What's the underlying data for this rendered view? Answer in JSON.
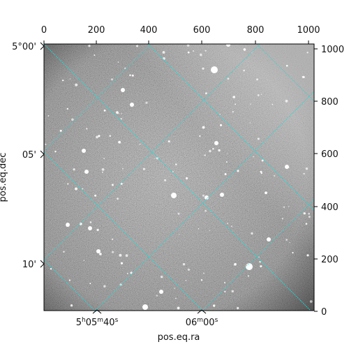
{
  "figure": {
    "axes": {
      "xlabel": "pos.eq.ra",
      "ylabel": "pos.eq.dec",
      "top_ticks": [
        "0",
        "200",
        "400",
        "600",
        "800",
        "1000"
      ],
      "right_ticks": [
        "1000",
        "800",
        "600",
        "400",
        "200",
        "0"
      ],
      "ra_ticks": [
        {
          "h": "5",
          "hs": "h",
          "m": "05",
          "ms": "m",
          "s": "40",
          "ss": "s"
        },
        {
          "h": "",
          "hs": "",
          "m": "06",
          "ms": "m",
          "s": "00",
          "ss": "s"
        }
      ],
      "dec_ticks": [
        "5°00'",
        "05'",
        "10'"
      ]
    },
    "image": {
      "grid_color": "#3fd0d0",
      "background": "#000000"
    }
  }
}
